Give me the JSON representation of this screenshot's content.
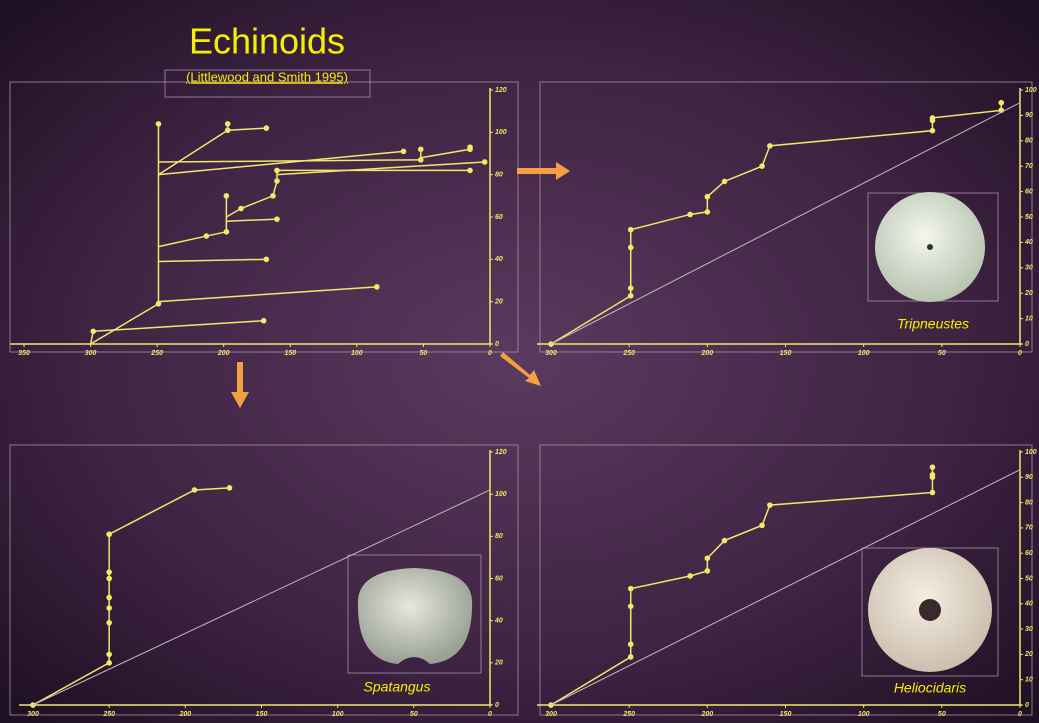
{
  "slide": {
    "title": "Echinoids",
    "subtitle": "(Littlewood and Smith 1995)"
  },
  "chart_data": [
    {
      "type": "tree",
      "color": "#f2e86a",
      "xlim": [
        350,
        0
      ],
      "xticks": [
        350,
        300,
        250,
        200,
        150,
        100,
        50,
        0
      ],
      "ylim": [
        0,
        120
      ],
      "yticks": [
        0,
        20,
        40,
        60,
        80,
        100,
        120
      ],
      "segments": [
        [
          300,
          0,
          298,
          6
        ],
        [
          298,
          6,
          170,
          11
        ],
        [
          300,
          0,
          249,
          19
        ],
        [
          249,
          19,
          249,
          104
        ],
        [
          249,
          20,
          85,
          27
        ],
        [
          249,
          39,
          168,
          40
        ],
        [
          249,
          46,
          213,
          51
        ],
        [
          213,
          51,
          198,
          53
        ],
        [
          198,
          53,
          198,
          70
        ],
        [
          198,
          58,
          160,
          59
        ],
        [
          198,
          60,
          187,
          64
        ],
        [
          187,
          64,
          163,
          70
        ],
        [
          163,
          70,
          160,
          77
        ],
        [
          160,
          77,
          160,
          82
        ],
        [
          160,
          82,
          15,
          82
        ],
        [
          249,
          80,
          65,
          91
        ],
        [
          160,
          80,
          4,
          86
        ],
        [
          249,
          86,
          52,
          87
        ],
        [
          52,
          87,
          52,
          92
        ],
        [
          52,
          88,
          15,
          92
        ],
        [
          15,
          91,
          15,
          93
        ],
        [
          249,
          80,
          197,
          101
        ],
        [
          197,
          101,
          168,
          102
        ],
        [
          197,
          101,
          197,
          104
        ]
      ]
    },
    {
      "type": "line",
      "specimen_label": "Tripneustes",
      "xlim": [
        300,
        0
      ],
      "xticks": [
        300,
        250,
        200,
        150,
        100,
        50,
        0
      ],
      "ylim": [
        0,
        100
      ],
      "yticks": [
        0,
        10,
        20,
        30,
        40,
        50,
        60,
        70,
        80,
        90,
        100
      ],
      "series": [
        {
          "color": "#f2e86a",
          "x": [
            300,
            249,
            249,
            249,
            249,
            211,
            200,
            200,
            189,
            165,
            160,
            56,
            56,
            56,
            12,
            12
          ],
          "values": [
            0,
            19,
            22,
            38,
            45,
            51,
            52,
            58,
            64,
            70,
            78,
            84,
            88,
            89,
            92,
            95
          ]
        },
        {
          "color": "#c9b8c4",
          "markers": false,
          "x": [
            300,
            0
          ],
          "values": [
            0,
            95
          ]
        }
      ]
    },
    {
      "type": "line",
      "specimen_label": "Spatangus",
      "xlim": [
        300,
        0
      ],
      "xticks": [
        300,
        250,
        200,
        150,
        100,
        50,
        0
      ],
      "ylim": [
        0,
        120
      ],
      "yticks": [
        0,
        20,
        40,
        60,
        80,
        100,
        120
      ],
      "series": [
        {
          "color": "#f2e86a",
          "x": [
            300,
            250,
            250,
            250,
            250,
            250,
            250,
            250,
            250,
            194,
            171
          ],
          "values": [
            0,
            20,
            24,
            39,
            46,
            51,
            60,
            63,
            81,
            102,
            103
          ]
        },
        {
          "color": "#c9b8c4",
          "markers": false,
          "x": [
            300,
            0
          ],
          "values": [
            0,
            102
          ]
        }
      ]
    },
    {
      "type": "line",
      "specimen_label": "Heliocidaris",
      "xlim": [
        300,
        0
      ],
      "xticks": [
        300,
        250,
        200,
        150,
        100,
        50,
        0
      ],
      "ylim": [
        0,
        100
      ],
      "yticks": [
        0,
        10,
        20,
        30,
        40,
        50,
        60,
        70,
        80,
        90,
        100
      ],
      "series": [
        {
          "color": "#f2e86a",
          "x": [
            300,
            249,
            249,
            249,
            249,
            211,
            200,
            200,
            189,
            165,
            160,
            56,
            56,
            56,
            56
          ],
          "values": [
            0,
            19,
            24,
            39,
            46,
            51,
            53,
            58,
            65,
            71,
            79,
            84,
            90,
            91,
            94
          ]
        },
        {
          "color": "#c9b8c4",
          "markers": false,
          "x": [
            300,
            0
          ],
          "values": [
            0,
            93
          ]
        }
      ]
    }
  ]
}
